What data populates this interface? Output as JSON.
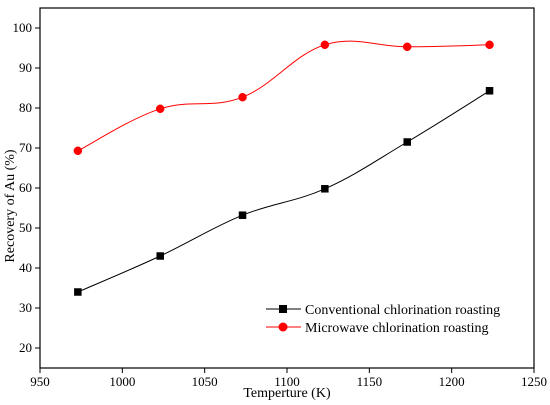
{
  "chart_data": {
    "type": "line",
    "xlabel": "Temperture (K)",
    "ylabel": "Recovery of Au (%)",
    "xlim": [
      950,
      1250
    ],
    "ylim": [
      15,
      105
    ],
    "xticks": [
      950,
      1000,
      1050,
      1100,
      1150,
      1200,
      1250
    ],
    "yticks": [
      20,
      30,
      40,
      50,
      60,
      70,
      80,
      90,
      100
    ],
    "grid": false,
    "legend_position": "bottom-right",
    "x": [
      973,
      1023,
      1073,
      1123,
      1173,
      1223
    ],
    "series": [
      {
        "name": "Conventional chlorination roasting",
        "values": [
          34.0,
          43.0,
          53.2,
          59.8,
          71.5,
          84.3
        ],
        "color": "#000000",
        "line_color": "#000000",
        "marker": "square"
      },
      {
        "name": "Microwave chlorination roasting",
        "values": [
          69.3,
          79.8,
          82.7,
          95.8,
          95.3,
          95.8
        ],
        "color": "#ff0000",
        "line_color": "#ff0000",
        "marker": "circle"
      }
    ]
  }
}
